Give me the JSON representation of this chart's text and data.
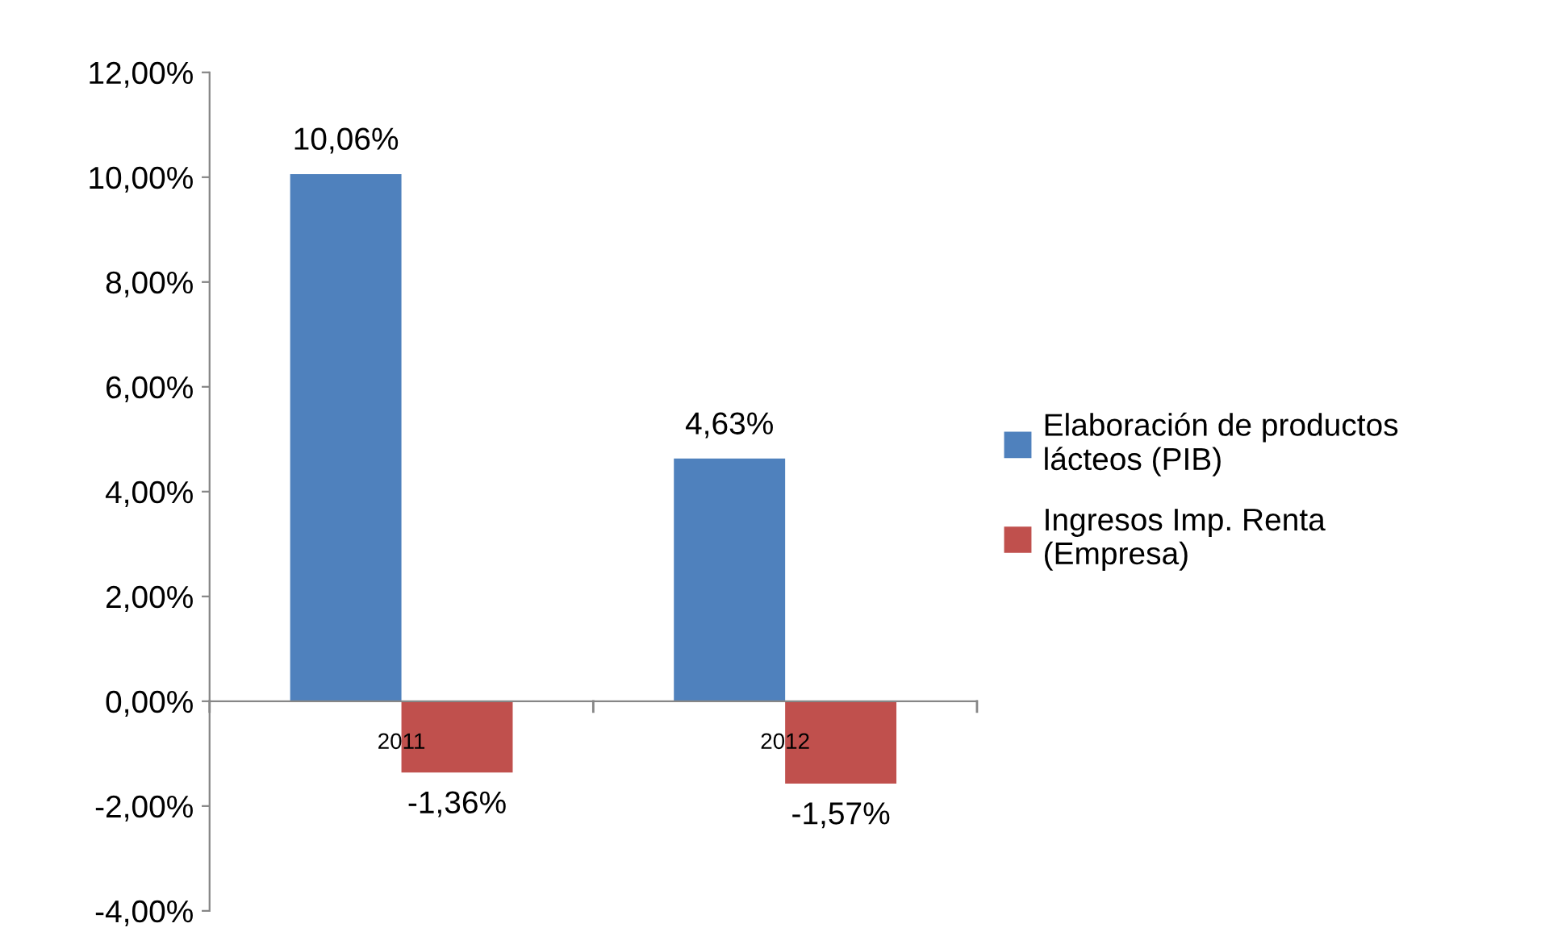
{
  "chart_data": {
    "type": "bar",
    "categories": [
      "2011",
      "2012"
    ],
    "series": [
      {
        "name": "Elaboración de productos lácteos (PIB)",
        "color": "#4f81bd",
        "values": [
          10.06,
          4.63
        ],
        "value_labels": [
          "10,06%",
          "4,63%"
        ]
      },
      {
        "name": "Ingresos Imp. Renta (Empresa)",
        "color": "#c0504d",
        "values": [
          -1.36,
          -1.57
        ],
        "value_labels": [
          "-1,36%",
          "-1,57%"
        ]
      }
    ],
    "ylim": [
      -4,
      12
    ],
    "yticks": [
      {
        "value": -4,
        "label": "-4,00%"
      },
      {
        "value": -2,
        "label": "-2,00%"
      },
      {
        "value": 0,
        "label": "0,00%"
      },
      {
        "value": 2,
        "label": "2,00%"
      },
      {
        "value": 4,
        "label": "4,00%"
      },
      {
        "value": 6,
        "label": "6,00%"
      },
      {
        "value": 8,
        "label": "8,00%"
      },
      {
        "value": 10,
        "label": "10,00%"
      },
      {
        "value": 12,
        "label": "12,00%"
      }
    ],
    "grid": false,
    "legend": "right"
  }
}
